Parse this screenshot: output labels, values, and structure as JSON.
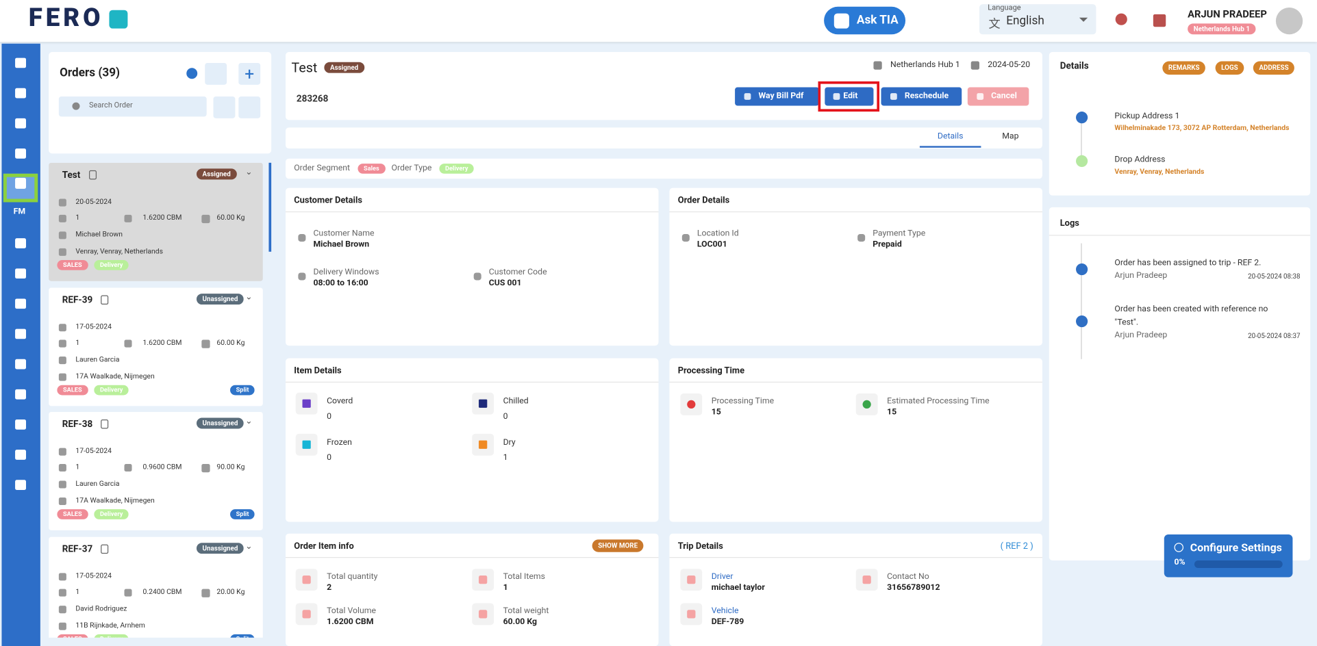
{
  "header": {
    "logo": "FERO",
    "ask_tia": "Ask TIA",
    "language_label": "Language",
    "language": "English",
    "user_name": "ARJUN PRADEEP",
    "hub": "Netherlands Hub 1"
  },
  "sidebar": {
    "fm_label": "FM"
  },
  "orders_panel": {
    "title": "Orders (39)",
    "search_placeholder": "Search Order",
    "orders": [
      {
        "ref": "Test",
        "status": "Assigned",
        "date": "20-05-2024",
        "quantity": "1",
        "volume": "1.6200 CBM",
        "weight": "60.00 Kg",
        "name": "Michael Brown",
        "address": "Venray, Venray, Netherlands",
        "segment": "SALES",
        "type": "Delivery"
      },
      {
        "ref": "REF-39",
        "status": "Unassigned",
        "date": "17-05-2024",
        "quantity": "1",
        "volume": "1.6200 CBM",
        "weight": "60.00 Kg",
        "name": "Lauren Garcia",
        "address": "17A Waalkade, Nijmegen",
        "segment": "SALES",
        "type": "Delivery",
        "split": "Split"
      },
      {
        "ref": "REF-38",
        "status": "Unassigned",
        "date": "17-05-2024",
        "quantity": "1",
        "volume": "0.9600 CBM",
        "weight": "90.00 Kg",
        "name": "Lauren Garcia",
        "address": "17A Waalkade, Nijmegen",
        "segment": "SALES",
        "type": "Delivery",
        "split": "Split"
      },
      {
        "ref": "REF-37",
        "status": "Unassigned",
        "date": "17-05-2024",
        "quantity": "1",
        "volume": "0.2400 CBM",
        "weight": "20.00 Kg",
        "name": "David Rodriguez",
        "address": "11B Rijnkade, Arnhem",
        "segment": "SALES",
        "type": "Delivery",
        "split": "Split"
      }
    ]
  },
  "order_header": {
    "title": "Test",
    "status": "Assigned",
    "hub": "Netherlands Hub 1",
    "date": "2024-05-20",
    "order_id": "283268",
    "buttons": [
      "Way Bill Pdf",
      "Edit",
      "Reschedule",
      "Cancel"
    ]
  },
  "tabs": [
    "Details",
    "Map"
  ],
  "segment_row": {
    "segment_label": "Order Segment",
    "segment": "Sales",
    "type_label": "Order Type",
    "type": "Delivery"
  },
  "customer_details": {
    "title": "Customer Details",
    "fields": [
      {
        "label": "Customer Name",
        "value": "Michael Brown"
      },
      {
        "label": "Delivery Windows",
        "value": "08:00 to 16:00"
      },
      {
        "label": "Customer Code",
        "value": "CUS 001"
      }
    ]
  },
  "order_details": {
    "title": "Order Details",
    "fields": [
      {
        "label": "Location Id",
        "value": "LOC001"
      },
      {
        "label": "Payment Type",
        "value": "Prepaid"
      }
    ]
  },
  "item_details": {
    "title": "Item Details",
    "items": [
      {
        "label": "Coverd",
        "value": "0"
      },
      {
        "label": "Chilled",
        "value": "0"
      },
      {
        "label": "Frozen",
        "value": "0"
      },
      {
        "label": "Dry",
        "value": "1"
      }
    ]
  },
  "processing_time": {
    "title": "Processing Time",
    "fields": [
      {
        "label": "Processing Time",
        "value": "15"
      },
      {
        "label": "Estimated Processing Time",
        "value": "15"
      }
    ]
  },
  "order_item_info": {
    "title": "Order Item info",
    "show_more": "SHOW MORE",
    "fields": [
      {
        "label": "Total quantity",
        "value": "2"
      },
      {
        "label": "Total Items",
        "value": "1"
      },
      {
        "label": "Total Volume",
        "value": "1.6200 CBM"
      },
      {
        "label": "Total weight",
        "value": "60.00 Kg"
      }
    ]
  },
  "trip_details": {
    "title": "Trip Details",
    "ref": "( REF 2 )",
    "fields": [
      {
        "label": "Driver",
        "value": "michael taylor"
      },
      {
        "label": "Contact No",
        "value": "31656789012"
      },
      {
        "label": "Vehicle",
        "value": "DEF-789"
      }
    ]
  },
  "details_panel": {
    "title": "Details",
    "tags": [
      "REMARKS",
      "LOGS",
      "ADDRESS"
    ],
    "stops": [
      {
        "label": "Pickup Address 1",
        "address": "Wilhelminakade 173, 3072 AP Rotterdam, Netherlands"
      },
      {
        "label": "Drop Address",
        "address": "Venray, Venray, Netherlands"
      }
    ]
  },
  "logs": {
    "title": "Logs",
    "entries": [
      {
        "text": "Order has been assigned to trip - REF 2.",
        "user": "Arjun Pradeep",
        "time": "20-05-2024 08:38"
      },
      {
        "text": "Order has been created with reference no \"Test\".",
        "user": "Arjun Pradeep",
        "time": "20-05-2024 08:37"
      }
    ]
  },
  "configure": {
    "title": "Configure Settings",
    "progress": "0%"
  }
}
